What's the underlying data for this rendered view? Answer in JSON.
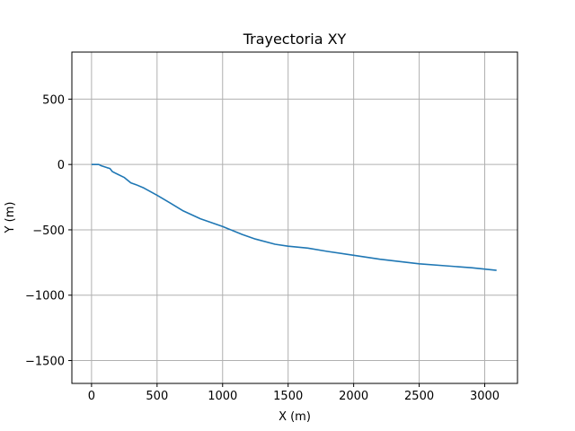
{
  "chart_data": {
    "type": "line",
    "title": "Trayectoria XY",
    "xlabel": "X (m)",
    "ylabel": "Y (m)",
    "xlim": [
      -150,
      3250
    ],
    "ylim": [
      -1675,
      860
    ],
    "xticks": [
      0,
      500,
      1000,
      1500,
      2000,
      2500,
      3000
    ],
    "yticks": [
      500,
      0,
      -500,
      -1000,
      -1500
    ],
    "xtick_labels": [
      "0",
      "500",
      "1000",
      "1500",
      "2000",
      "2500",
      "3000"
    ],
    "ytick_labels": [
      "500",
      "0",
      "−500",
      "−1000",
      "−1500"
    ],
    "grid": true,
    "series": [
      {
        "color": "#1f77b4",
        "x": [
          0,
          55,
          75,
          120,
          140,
          160,
          200,
          250,
          300,
          340,
          400,
          500,
          600,
          700,
          830,
          1000,
          1150,
          1250,
          1400,
          1500,
          1650,
          1800,
          2000,
          2200,
          2500,
          2700,
          2900,
          3090
        ],
        "y": [
          0,
          0,
          -10,
          -25,
          -30,
          -55,
          -75,
          -100,
          -140,
          -155,
          -180,
          -235,
          -295,
          -355,
          -415,
          -475,
          -535,
          -570,
          -610,
          -625,
          -640,
          -665,
          -695,
          -725,
          -760,
          -775,
          -790,
          -810
        ]
      }
    ]
  }
}
